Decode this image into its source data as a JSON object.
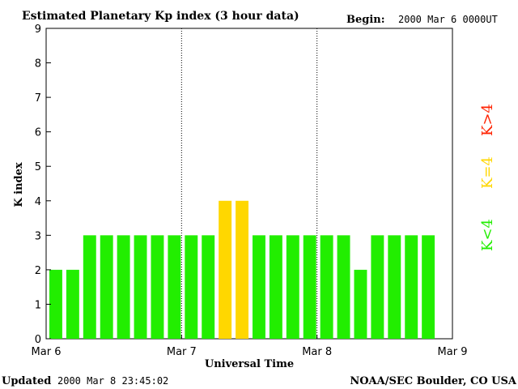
{
  "header": {
    "title": "Estimated Planetary Kp index (3 hour data)",
    "begin_label": "Begin:",
    "begin_value": "2000 Mar 6 0000UT"
  },
  "footer": {
    "updated_label": "Updated",
    "updated_value": "2000 Mar  8 23:45:02",
    "source": "NOAA/SEC Boulder, CO USA"
  },
  "legend": [
    {
      "label": "K<4",
      "color": "#22ee00"
    },
    {
      "label": "K=4",
      "color": "#ffd700"
    },
    {
      "label": "K>4",
      "color": "#ff2200"
    }
  ],
  "chart_data": {
    "type": "bar",
    "title": "Estimated Planetary Kp index (3 hour data)",
    "xlabel": "Universal Time",
    "ylabel": "K index",
    "ylim": [
      0,
      9
    ],
    "yticks": [
      0,
      1,
      2,
      3,
      4,
      5,
      6,
      7,
      8,
      9
    ],
    "x_tick_labels": [
      "Mar 6",
      "Mar 7",
      "Mar 8",
      "Mar 9"
    ],
    "day_dividers": [
      "Mar 7",
      "Mar 8"
    ],
    "intervals_per_day": 8,
    "total_days": 3,
    "values": [
      2,
      2,
      3,
      3,
      3,
      3,
      3,
      3,
      3,
      3,
      4,
      4,
      3,
      3,
      3,
      3,
      3,
      3,
      2,
      3,
      3,
      3,
      3
    ],
    "colors": {
      "below": "#22ee00",
      "equal": "#ffd700",
      "above": "#ff2200"
    }
  }
}
